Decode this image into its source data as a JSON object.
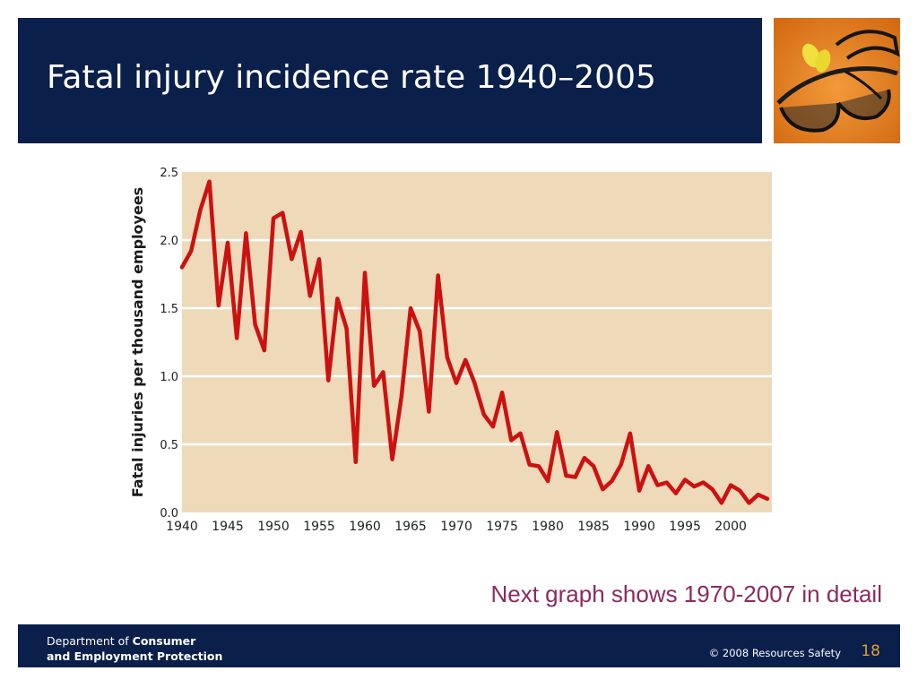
{
  "slide": {
    "title": "Fatal injury incidence rate 1940–2005",
    "note": "Next graph shows 1970-2007 in detail"
  },
  "footer": {
    "dept_prefix": "Department of ",
    "dept_bold1": "Consumer",
    "dept_line2": "and Employment Protection",
    "copyright": "© 2008 Resources Safety",
    "page_number": "18"
  },
  "colors": {
    "title_bar": "#0a1f4a",
    "plot_background": "#eed9b9",
    "line": "#cc1111",
    "note_text": "#8b2b5e",
    "page_number": "#e0a030"
  },
  "icons": {
    "photo": "safety-glasses-and-earplugs-photo"
  },
  "chart_data": {
    "type": "line",
    "title": "",
    "xlabel": "",
    "ylabel": "Fatal injuries per thousand employees",
    "xlim": [
      1940,
      2004.5
    ],
    "ylim": [
      0,
      2.5
    ],
    "grid": "horizontal",
    "x_ticks": [
      1940,
      1945,
      1950,
      1955,
      1960,
      1965,
      1970,
      1975,
      1980,
      1985,
      1990,
      1995,
      2000
    ],
    "x_tick_labels": [
      "1940",
      "1945",
      "1950",
      "1955",
      "1960",
      "1965",
      "1970",
      "1975",
      "1980",
      "1985",
      "1990",
      "1995",
      "2000"
    ],
    "y_ticks": [
      0,
      0.5,
      1.0,
      1.5,
      2.0,
      2.5
    ],
    "y_tick_labels": [
      "0.0",
      "0.5",
      "1.0",
      "1.5",
      "2.0",
      "2.5"
    ],
    "x": [
      1940,
      1941,
      1942,
      1943,
      1944,
      1945,
      1946,
      1947,
      1948,
      1949,
      1950,
      1951,
      1952,
      1953,
      1954,
      1955,
      1956,
      1957,
      1958,
      1959,
      1960,
      1961,
      1962,
      1963,
      1964,
      1965,
      1966,
      1967,
      1968,
      1969,
      1970,
      1971,
      1972,
      1973,
      1974,
      1975,
      1976,
      1977,
      1978,
      1979,
      1980,
      1981,
      1982,
      1983,
      1984,
      1985,
      1986,
      1987,
      1988,
      1989,
      1990,
      1991,
      1992,
      1993,
      1994,
      1995,
      1996,
      1997,
      1998,
      1999,
      2000,
      2001,
      2002,
      2003,
      2004
    ],
    "values": [
      1.8,
      1.92,
      2.22,
      2.43,
      1.52,
      1.98,
      1.28,
      2.05,
      1.38,
      1.19,
      2.16,
      2.2,
      1.86,
      2.06,
      1.59,
      1.86,
      0.97,
      1.57,
      1.35,
      0.37,
      1.76,
      0.93,
      1.03,
      0.39,
      0.85,
      1.5,
      1.33,
      0.74,
      1.74,
      1.14,
      0.95,
      1.12,
      0.95,
      0.72,
      0.63,
      0.88,
      0.53,
      0.58,
      0.35,
      0.34,
      0.23,
      0.59,
      0.27,
      0.26,
      0.4,
      0.34,
      0.17,
      0.23,
      0.35,
      0.58,
      0.16,
      0.34,
      0.2,
      0.22,
      0.14,
      0.24,
      0.19,
      0.22,
      0.17,
      0.07,
      0.2,
      0.16,
      0.07,
      0.13,
      0.1
    ]
  }
}
